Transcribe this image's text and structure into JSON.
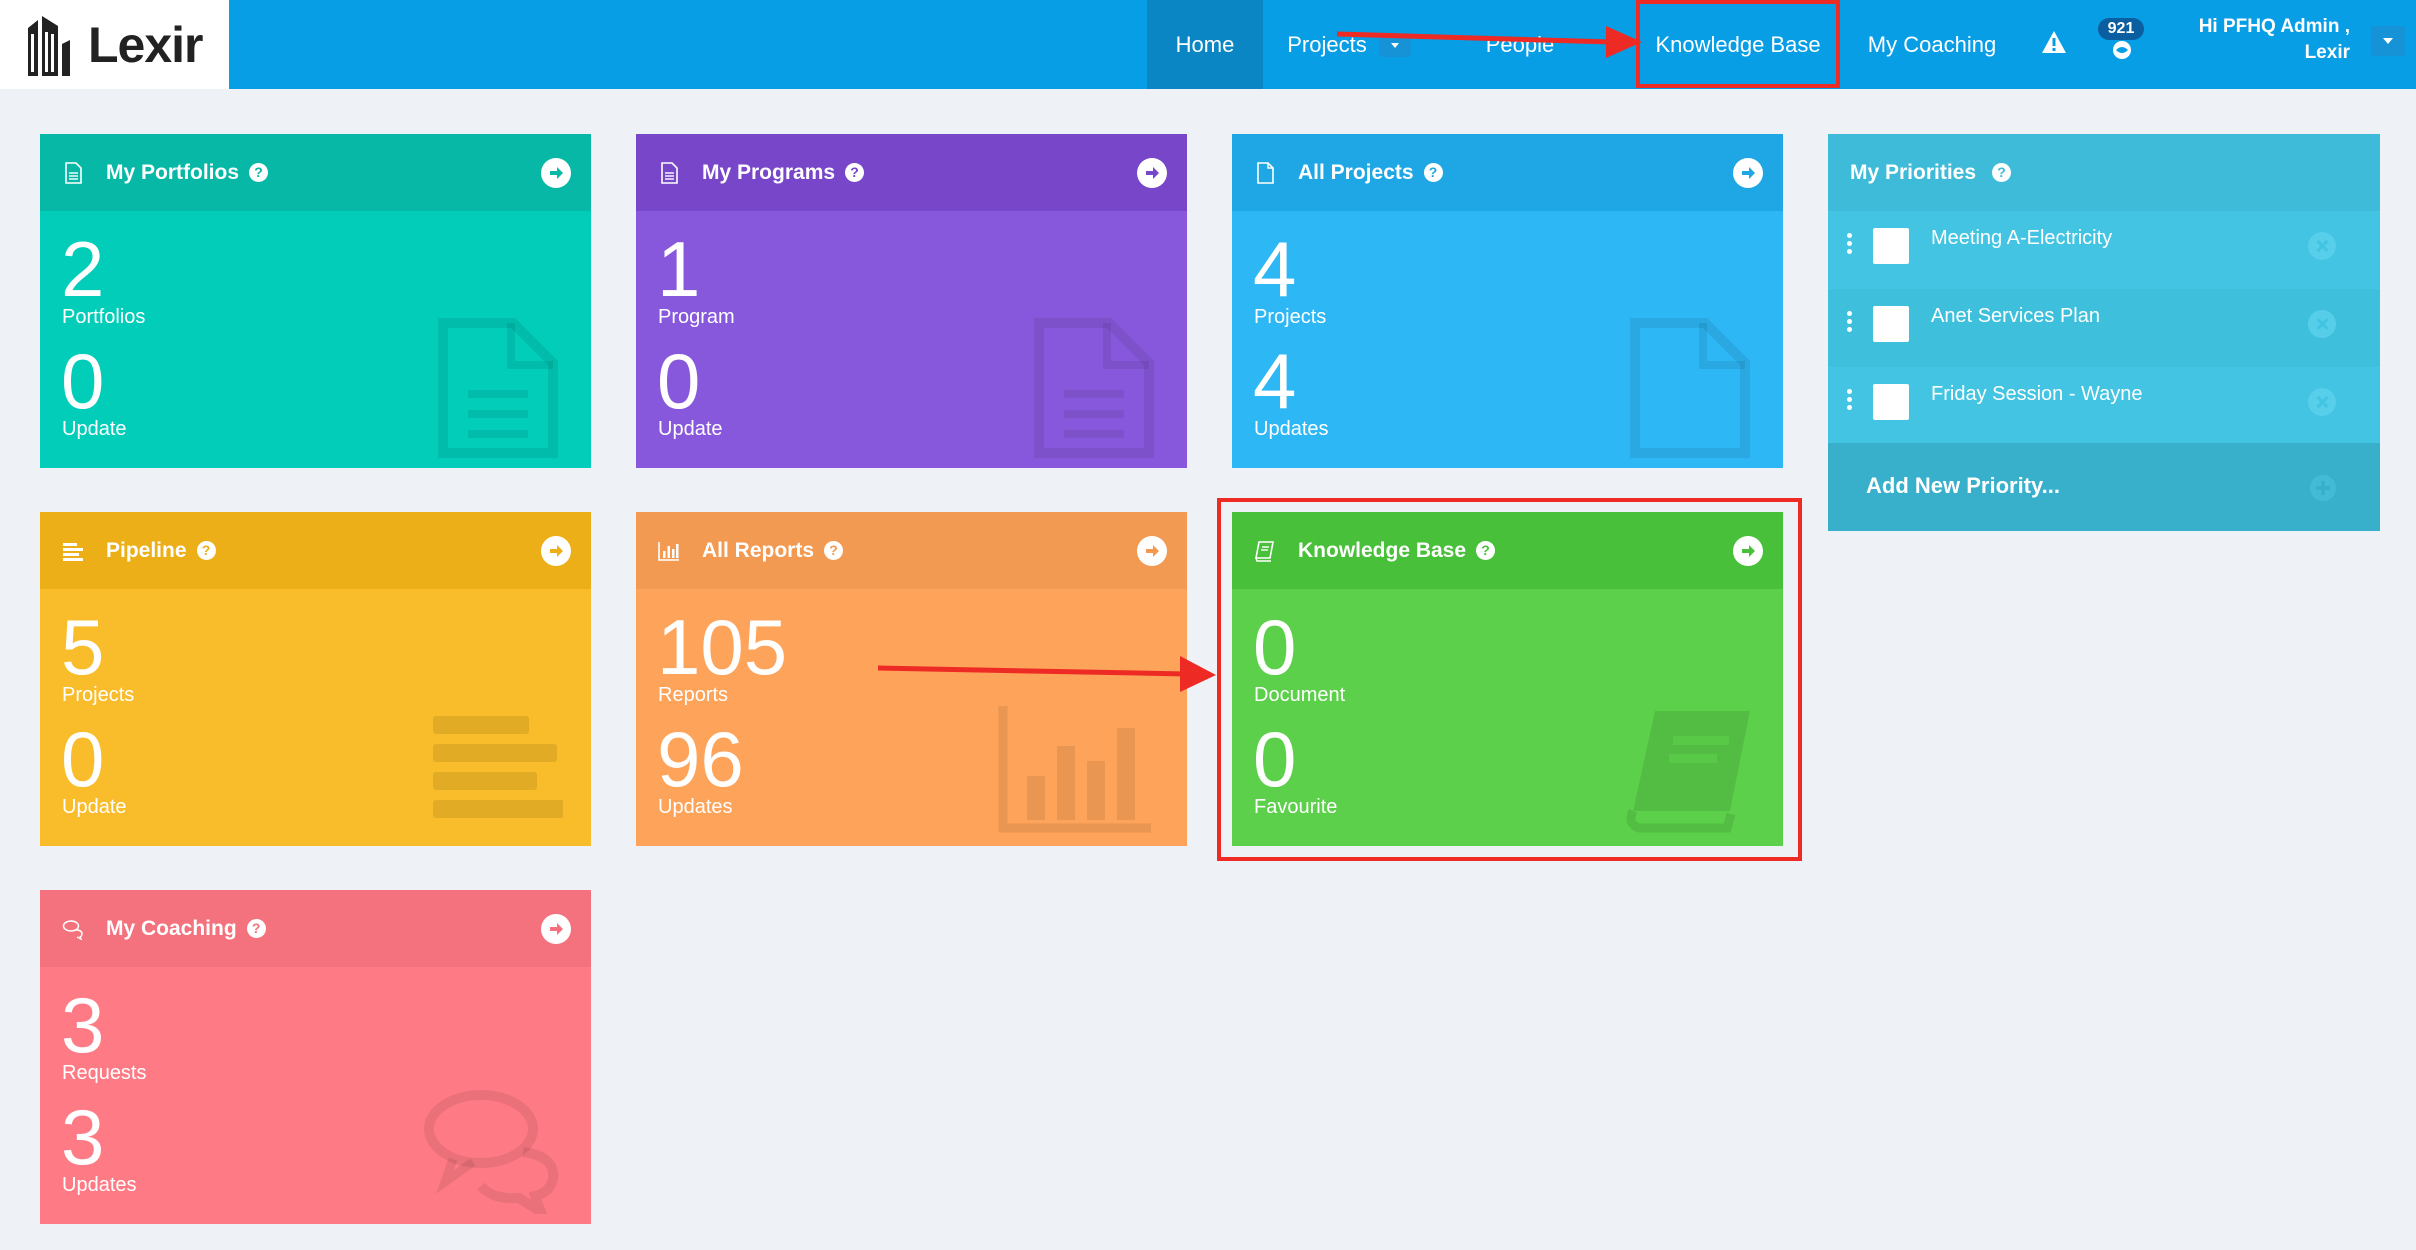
{
  "brand": {
    "logo_text": "Lexir"
  },
  "nav": {
    "home": "Home",
    "projects": "Projects",
    "people": "People",
    "knowledge_base": "Knowledge Base",
    "my_coaching": "My Coaching",
    "notification_count": "921",
    "greeting_line1": "Hi PFHQ Admin ,",
    "greeting_line2": "Lexir"
  },
  "cards": {
    "portfolios": {
      "title": "My Portfolios",
      "help": "?",
      "stat1": "2",
      "label1": "Portfolios",
      "stat2": "0",
      "label2": "Update"
    },
    "programs": {
      "title": "My Programs",
      "help": "?",
      "stat1": "1",
      "label1": "Program",
      "stat2": "0",
      "label2": "Update"
    },
    "projects": {
      "title": "All Projects",
      "help": "?",
      "stat1": "4",
      "label1": "Projects",
      "stat2": "4",
      "label2": "Updates"
    },
    "pipeline": {
      "title": "Pipeline",
      "help": "?",
      "stat1": "5",
      "label1": "Projects",
      "stat2": "0",
      "label2": "Update"
    },
    "reports": {
      "title": "All Reports",
      "help": "?",
      "stat1": "105",
      "label1": "Reports",
      "stat2": "96",
      "label2": "Updates"
    },
    "knowledge_base": {
      "title": "Knowledge Base",
      "help": "?",
      "stat1": "0",
      "label1": "Document",
      "stat2": "0",
      "label2": "Favourite"
    },
    "coaching": {
      "title": "My Coaching",
      "help": "?",
      "stat1": "3",
      "label1": "Requests",
      "stat2": "3",
      "label2": "Updates"
    }
  },
  "priorities": {
    "title": "My Priorities",
    "help": "?",
    "items": [
      {
        "label": "Meeting A-Electricity"
      },
      {
        "label": "Anet Services Plan"
      },
      {
        "label": "Friday Session - Wayne"
      }
    ],
    "add_label": "Add New Priority..."
  },
  "colors": {
    "navbar": "#089ee6",
    "highlight": "#ee2a24",
    "portfolios": "#02cdb9",
    "programs": "#8758dc",
    "projects": "#2db7f5",
    "pipeline": "#f9bc2a",
    "reports": "#fda35a",
    "knowledge_base": "#5cd04a",
    "coaching": "#fe7b85",
    "priorities": "#42c4e2"
  },
  "icons": {
    "portfolios": "document-text-icon",
    "programs": "document-text-icon",
    "projects": "document-blank-icon",
    "pipeline": "align-left-icon",
    "reports": "bar-chart-icon",
    "knowledge_base": "book-icon",
    "coaching": "chat-bubbles-icon",
    "card_link": "arrow-circle-right-icon",
    "alert": "warning-icon",
    "notifications": "globe-icon"
  }
}
